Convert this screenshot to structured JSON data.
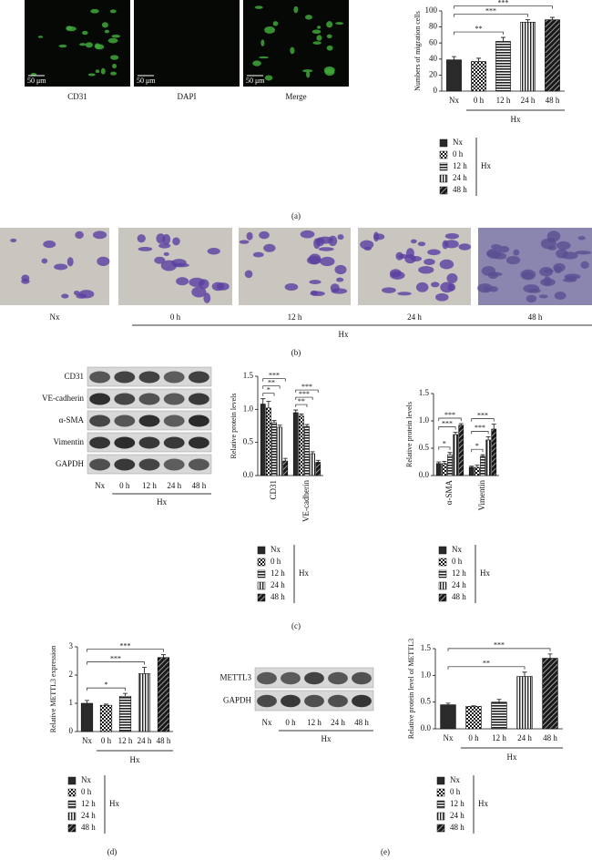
{
  "figure_labels": [
    "(a)",
    "(b)",
    "(c)",
    "(d)",
    "(e)"
  ],
  "fluorescence": {
    "labels": [
      "CD31",
      "DAPI",
      "Merge"
    ],
    "scale_bars": [
      "50 μm",
      "50 μm",
      "50 μm"
    ]
  },
  "micrographs": {
    "labels": [
      "Nx",
      "0 h",
      "12 h",
      "24 h",
      "48 h"
    ],
    "group": "Hx"
  },
  "blots": [
    {
      "rows": [
        "CD31",
        "VE-cadherin",
        "α-SMA",
        "Vimentin",
        "GAPDH"
      ],
      "lanes": [
        "Nx",
        "0 h",
        "12 h",
        "24 h",
        "48 h"
      ],
      "group": "Hx"
    },
    {
      "rows": [
        "METTL3",
        "GAPDH"
      ],
      "lanes": [
        "Nx",
        "0 h",
        "12 h",
        "24 h",
        "48 h"
      ],
      "group": "Hx"
    }
  ],
  "chart_data": [
    {
      "type": "bar",
      "ylabel": "Numbers of migration cells",
      "categories": [
        "Nx",
        "0 h",
        "12 h",
        "24 h",
        "48 h"
      ],
      "values": [
        39,
        37,
        62,
        86,
        89
      ],
      "errors": [
        4,
        4,
        5,
        3,
        3
      ],
      "ylim": [
        0,
        100
      ],
      "yticks": [
        0,
        20,
        40,
        60,
        80,
        100
      ],
      "group": {
        "label": "Hx",
        "from": 1,
        "to": 4
      },
      "comparisons": [
        {
          "from": 0,
          "to": 2,
          "label": "**"
        },
        {
          "from": 0,
          "to": 3,
          "label": "***"
        },
        {
          "from": 0,
          "to": 4,
          "label": "***"
        }
      ],
      "legend": {
        "group": "Hx"
      }
    },
    {
      "type": "grouped_bar",
      "ylabel": "Relative protein levels",
      "categories": [
        "CD31",
        "VE-cadherin"
      ],
      "series": [
        {
          "name": "Nx",
          "values": [
            1.08,
            0.95
          ],
          "errors": [
            0.08,
            0.04
          ]
        },
        {
          "name": "0 h",
          "values": [
            1.02,
            0.9
          ],
          "errors": [
            0.1,
            0.03
          ]
        },
        {
          "name": "12 h",
          "values": [
            0.8,
            0.74
          ],
          "errors": [
            0.03,
            0.03
          ]
        },
        {
          "name": "24 h",
          "values": [
            0.73,
            0.33
          ],
          "errors": [
            0.03,
            0.03
          ]
        },
        {
          "name": "48 h",
          "values": [
            0.22,
            0.2
          ],
          "errors": [
            0.04,
            0.03
          ]
        }
      ],
      "ylim": [
        0,
        1.5
      ],
      "yticks": [
        {
          "value": 0,
          "label": "0.0"
        },
        {
          "value": 0.5,
          "label": "0.5"
        },
        {
          "value": 1,
          "label": "1.0"
        },
        {
          "value": 1.5,
          "label": "1.5"
        }
      ],
      "x_label_rotation": -90,
      "comparisons": [
        {
          "category": 0,
          "from": 0,
          "to": 2,
          "label": "*"
        },
        {
          "category": 0,
          "from": 0,
          "to": 3,
          "label": "**"
        },
        {
          "category": 0,
          "from": 0,
          "to": 4,
          "label": "***"
        },
        {
          "category": 1,
          "from": 0,
          "to": 2,
          "label": "**"
        },
        {
          "category": 1,
          "from": 0,
          "to": 3,
          "label": "***"
        },
        {
          "category": 1,
          "from": 0,
          "to": 4,
          "label": "***"
        }
      ],
      "legend": {
        "group": "Hx"
      }
    },
    {
      "type": "grouped_bar",
      "ylabel": "Relative protein levels",
      "categories": [
        "α-SMA",
        "Vimentin"
      ],
      "series": [
        {
          "name": "Nx",
          "values": [
            0.22,
            0.15
          ],
          "errors": [
            0.03,
            0.02
          ]
        },
        {
          "name": "0 h",
          "values": [
            0.22,
            0.15
          ],
          "errors": [
            0.04,
            0.04
          ]
        },
        {
          "name": "12 h",
          "values": [
            0.38,
            0.35
          ],
          "errors": [
            0.04,
            0.03
          ]
        },
        {
          "name": "24 h",
          "values": [
            0.75,
            0.65
          ],
          "errors": [
            0.04,
            0.06
          ]
        },
        {
          "name": "48 h",
          "values": [
            0.92,
            0.85
          ],
          "errors": [
            0.03,
            0.09
          ]
        }
      ],
      "ylim": [
        0,
        1.5
      ],
      "yticks": [
        {
          "value": 0,
          "label": "0.0"
        },
        {
          "value": 0.5,
          "label": "0.5"
        },
        {
          "value": 1,
          "label": "1.0"
        },
        {
          "value": 1.5,
          "label": "1.5"
        }
      ],
      "x_label_rotation": -90,
      "comparisons": [
        {
          "category": 0,
          "from": 0,
          "to": 2,
          "label": "*"
        },
        {
          "category": 0,
          "from": 0,
          "to": 3,
          "label": "***"
        },
        {
          "category": 0,
          "from": 0,
          "to": 4,
          "label": "***"
        },
        {
          "category": 1,
          "from": 0,
          "to": 2,
          "label": "*"
        },
        {
          "category": 1,
          "from": 0,
          "to": 3,
          "label": "***"
        },
        {
          "category": 1,
          "from": 0,
          "to": 4,
          "label": "***"
        }
      ],
      "legend": {
        "group": "Hx"
      }
    },
    {
      "type": "bar",
      "ylabel": "Relative METTL3 expression",
      "categories": [
        "Nx",
        "0 h",
        "12 h",
        "24 h",
        "48 h"
      ],
      "values": [
        1.0,
        0.93,
        1.25,
        2.05,
        2.62
      ],
      "errors": [
        0.1,
        0.04,
        0.1,
        0.22,
        0.1
      ],
      "ylim": [
        0,
        3
      ],
      "yticks": [
        0,
        1,
        2,
        3
      ],
      "group": {
        "label": "Hx",
        "from": 1,
        "to": 4
      },
      "comparisons": [
        {
          "from": 0,
          "to": 2,
          "label": "*"
        },
        {
          "from": 0,
          "to": 3,
          "label": "***"
        },
        {
          "from": 0,
          "to": 4,
          "label": "***"
        }
      ],
      "legend": {
        "group": "Hx"
      }
    },
    {
      "type": "bar",
      "ylabel": "Relative protein level of METTL3",
      "categories": [
        "Nx",
        "0 h",
        "12 h",
        "24 h",
        "48 h"
      ],
      "values": [
        0.45,
        0.42,
        0.5,
        0.98,
        1.32
      ],
      "errors": [
        0.03,
        0.01,
        0.05,
        0.08,
        0.08
      ],
      "ylim": [
        0,
        1.5
      ],
      "yticks": [
        {
          "value": 0,
          "label": "0.0"
        },
        {
          "value": 0.5,
          "label": "0.5"
        },
        {
          "value": 1,
          "label": "1.0"
        },
        {
          "value": 1.5,
          "label": "1.5"
        }
      ],
      "group": {
        "label": "Hx",
        "from": 1,
        "to": 4
      },
      "comparisons": [
        {
          "from": 0,
          "to": 3,
          "label": "**"
        },
        {
          "from": 0,
          "to": 4,
          "label": "***"
        }
      ],
      "legend": {
        "group": "Hx"
      }
    }
  ]
}
